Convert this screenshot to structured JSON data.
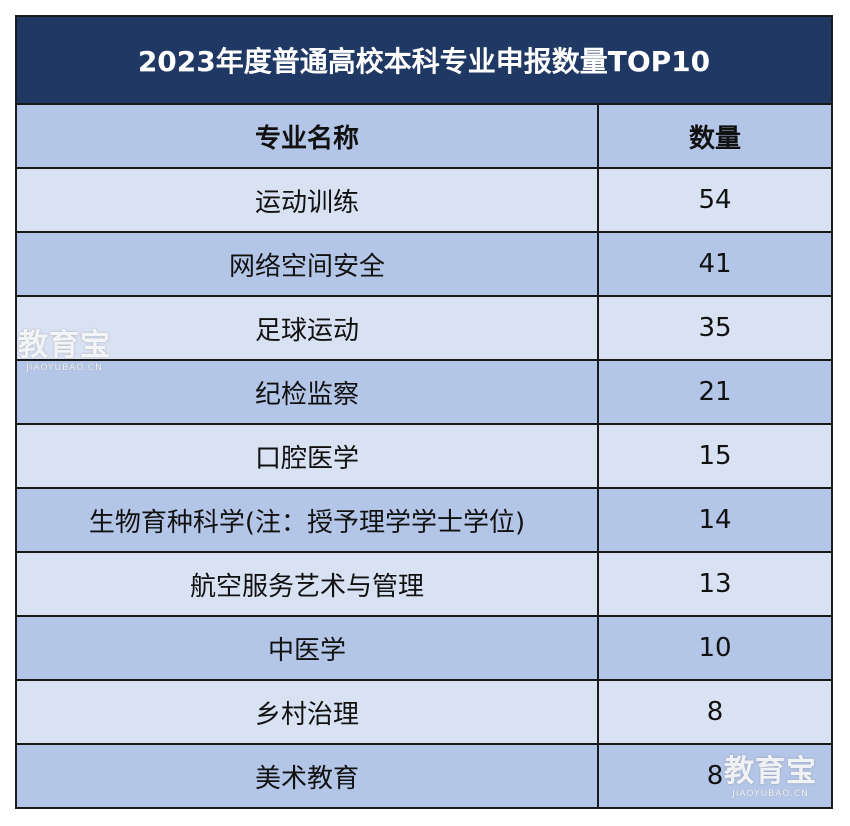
{
  "title": "2023年度普通高校本科专业申报数量TOP10",
  "header": {
    "name": "专业名称",
    "count": "数量"
  },
  "rows": [
    {
      "name": "运动训练",
      "count": "54"
    },
    {
      "name": "网络空间安全",
      "count": "41"
    },
    {
      "name": "足球运动",
      "count": "35"
    },
    {
      "name": "纪检监察",
      "count": "21"
    },
    {
      "name": "口腔医学",
      "count": "15"
    },
    {
      "name": "生物育种科学(注：授予理学学士学位)",
      "count": "14"
    },
    {
      "name": "航空服务艺术与管理",
      "count": "13"
    },
    {
      "name": "中医学",
      "count": "10"
    },
    {
      "name": "乡村治理",
      "count": "8"
    },
    {
      "name": "美术教育",
      "count": "8"
    }
  ],
  "watermark": {
    "main": "教育宝",
    "sub": "JIAOYUBAO.CN"
  },
  "colors": {
    "title_bg": "#203864",
    "row_light": "#d9e2f3",
    "row_dark": "#b4c6e7"
  }
}
